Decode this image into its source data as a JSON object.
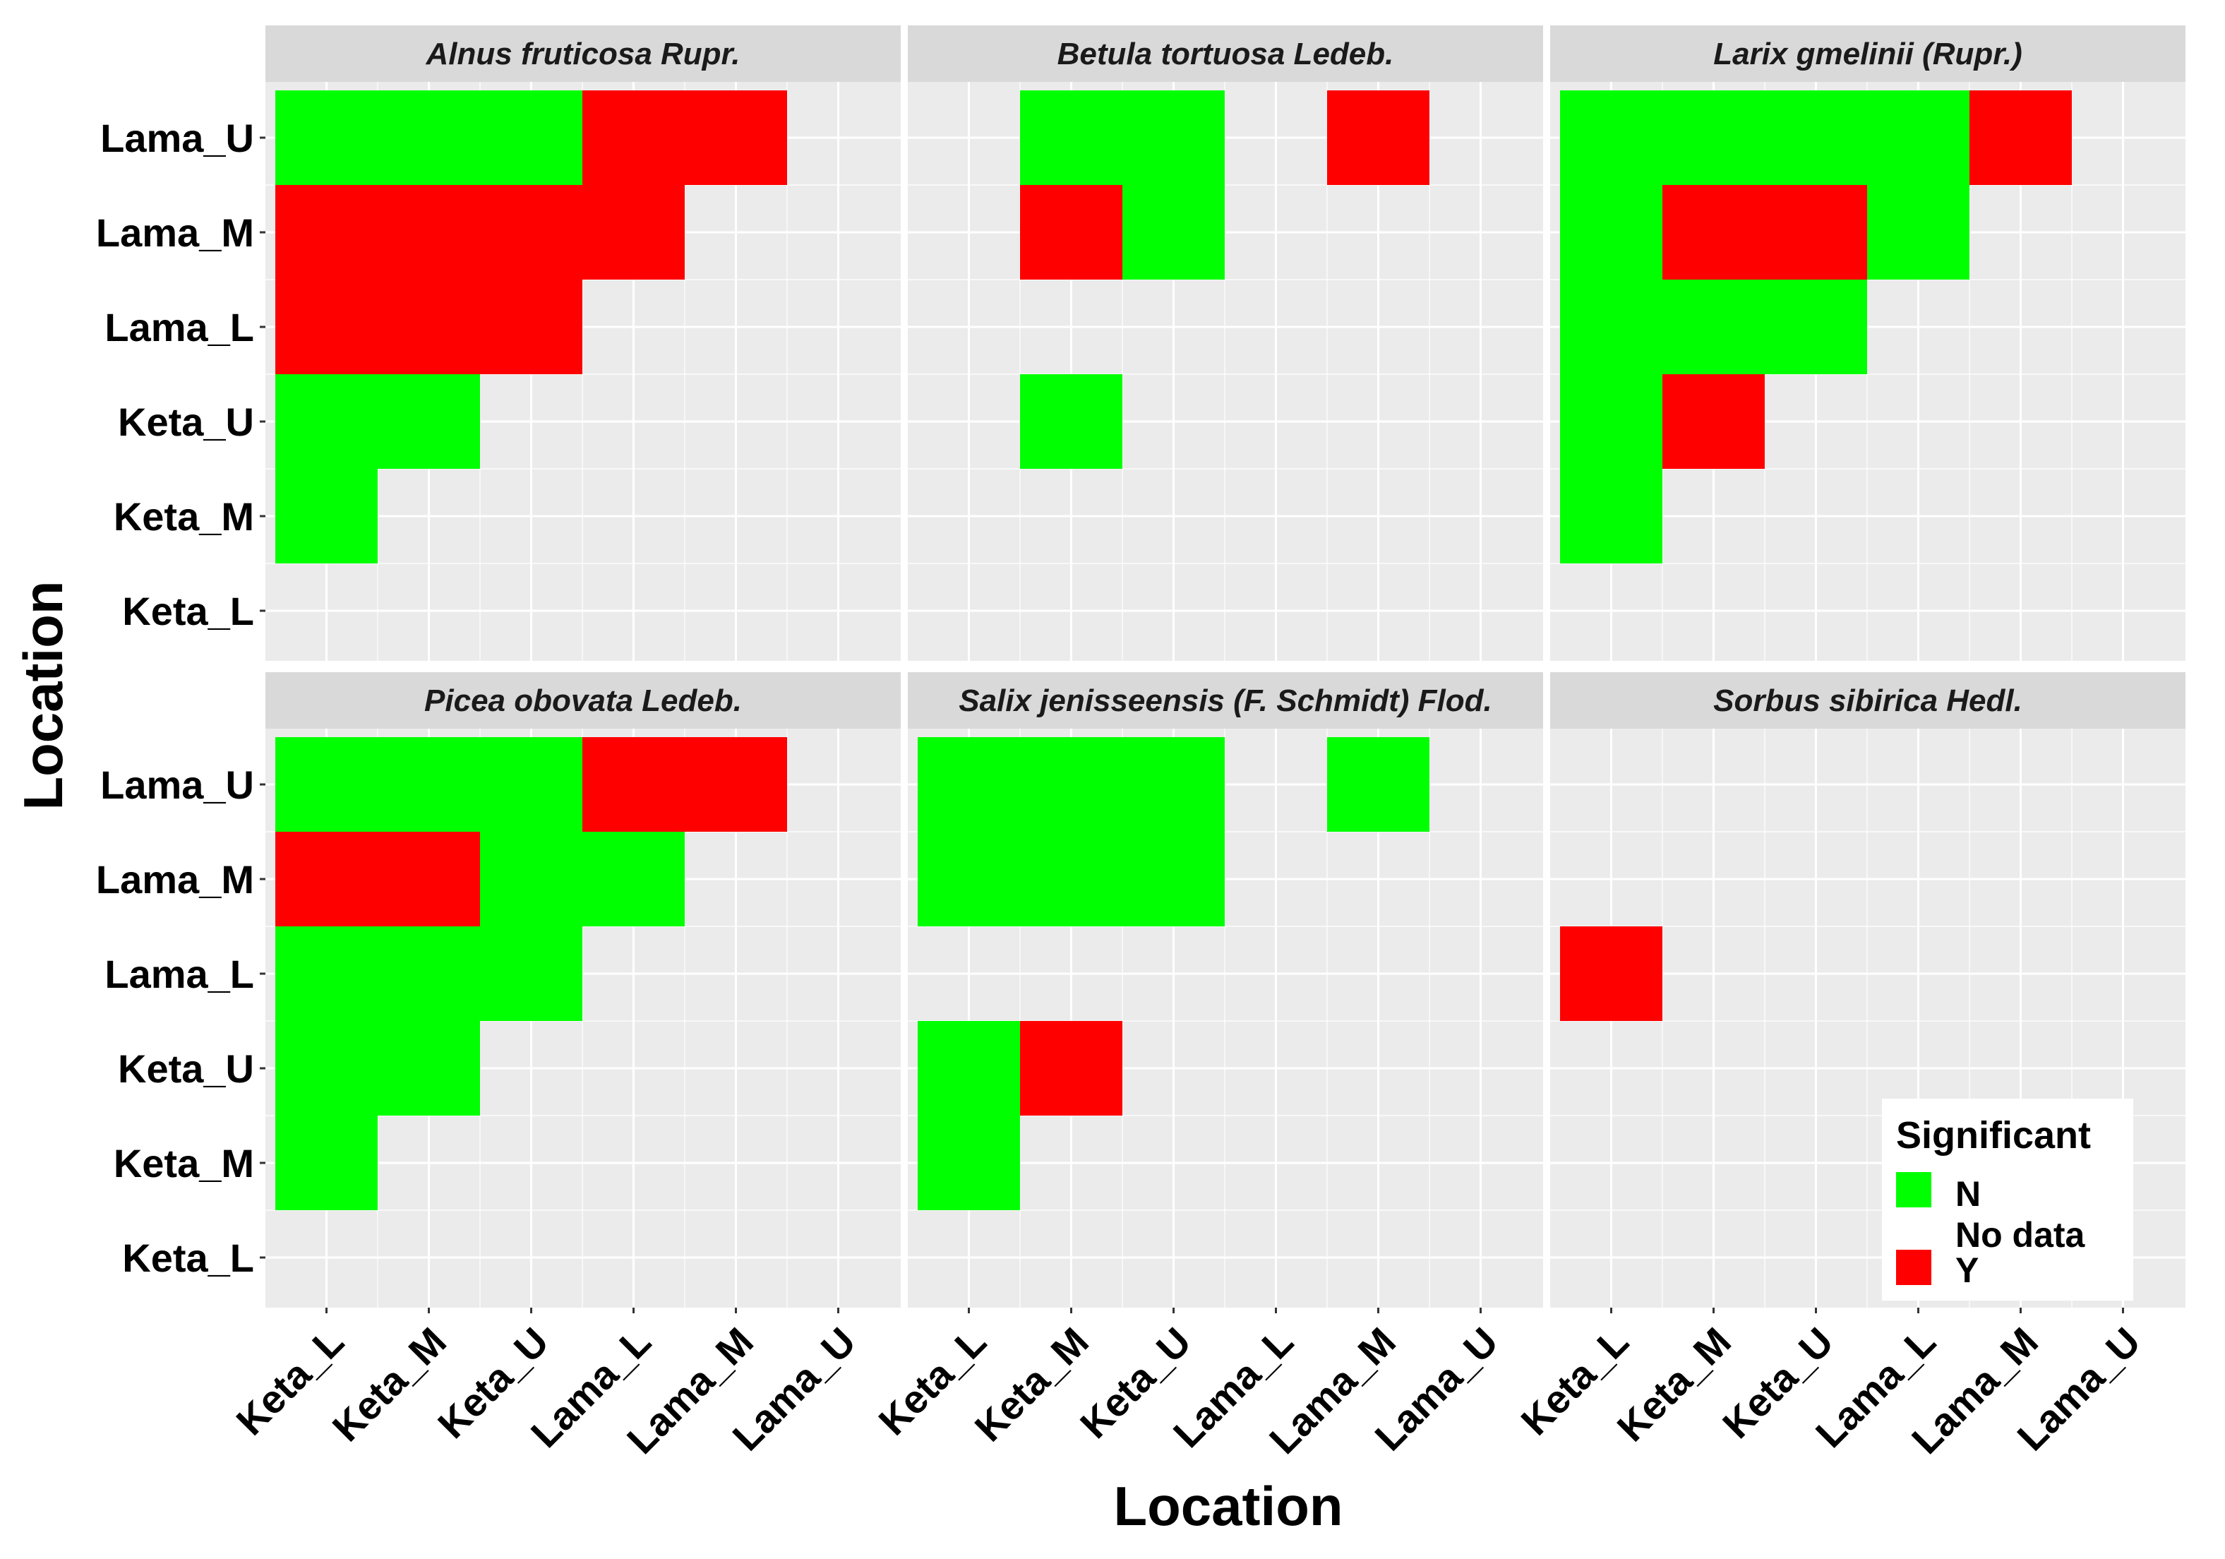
{
  "chart_data": {
    "type": "heatmap",
    "xlabel": "Location",
    "ylabel": "Location",
    "x_categories": [
      "Keta_L",
      "Keta_M",
      "Keta_U",
      "Lama_L",
      "Lama_M",
      "Lama_U"
    ],
    "y_categories": [
      "Keta_L",
      "Keta_M",
      "Keta_U",
      "Lama_L",
      "Lama_M",
      "Lama_U"
    ],
    "colors": {
      "N": "#00ff00",
      "Y": "#ff0000",
      "No data": "#ebebeb"
    },
    "legend": {
      "title": "Significant",
      "position": "bottom-right",
      "entries": [
        {
          "key": "N",
          "label": "N",
          "color": "#00ff00"
        },
        {
          "key": "No data",
          "label": "No data",
          "color": ""
        },
        {
          "key": "Y",
          "label": "Y",
          "color": "#ff0000"
        }
      ]
    },
    "facets": [
      {
        "title": "Alnus fruticosa Rupr.",
        "cells": [
          {
            "x": "Keta_L",
            "y": "Lama_U",
            "value": "N"
          },
          {
            "x": "Keta_M",
            "y": "Lama_U",
            "value": "N"
          },
          {
            "x": "Keta_U",
            "y": "Lama_U",
            "value": "N"
          },
          {
            "x": "Lama_L",
            "y": "Lama_U",
            "value": "Y"
          },
          {
            "x": "Lama_M",
            "y": "Lama_U",
            "value": "Y"
          },
          {
            "x": "Keta_L",
            "y": "Lama_M",
            "value": "Y"
          },
          {
            "x": "Keta_M",
            "y": "Lama_M",
            "value": "Y"
          },
          {
            "x": "Keta_U",
            "y": "Lama_M",
            "value": "Y"
          },
          {
            "x": "Lama_L",
            "y": "Lama_M",
            "value": "Y"
          },
          {
            "x": "Keta_L",
            "y": "Lama_L",
            "value": "Y"
          },
          {
            "x": "Keta_M",
            "y": "Lama_L",
            "value": "Y"
          },
          {
            "x": "Keta_U",
            "y": "Lama_L",
            "value": "Y"
          },
          {
            "x": "Keta_L",
            "y": "Keta_U",
            "value": "N"
          },
          {
            "x": "Keta_M",
            "y": "Keta_U",
            "value": "N"
          },
          {
            "x": "Keta_L",
            "y": "Keta_M",
            "value": "N"
          }
        ]
      },
      {
        "title": "Betula tortuosa Ledeb.",
        "cells": [
          {
            "x": "Keta_M",
            "y": "Lama_U",
            "value": "N"
          },
          {
            "x": "Keta_U",
            "y": "Lama_U",
            "value": "N"
          },
          {
            "x": "Lama_M",
            "y": "Lama_U",
            "value": "Y"
          },
          {
            "x": "Keta_M",
            "y": "Lama_M",
            "value": "Y"
          },
          {
            "x": "Keta_U",
            "y": "Lama_M",
            "value": "N"
          },
          {
            "x": "Keta_M",
            "y": "Keta_U",
            "value": "N"
          }
        ]
      },
      {
        "title": "Larix gmelinii (Rupr.)",
        "cells": [
          {
            "x": "Keta_L",
            "y": "Lama_U",
            "value": "N"
          },
          {
            "x": "Keta_M",
            "y": "Lama_U",
            "value": "N"
          },
          {
            "x": "Keta_U",
            "y": "Lama_U",
            "value": "N"
          },
          {
            "x": "Lama_L",
            "y": "Lama_U",
            "value": "N"
          },
          {
            "x": "Lama_M",
            "y": "Lama_U",
            "value": "Y"
          },
          {
            "x": "Keta_L",
            "y": "Lama_M",
            "value": "N"
          },
          {
            "x": "Keta_M",
            "y": "Lama_M",
            "value": "Y"
          },
          {
            "x": "Keta_U",
            "y": "Lama_M",
            "value": "Y"
          },
          {
            "x": "Lama_L",
            "y": "Lama_M",
            "value": "N"
          },
          {
            "x": "Keta_L",
            "y": "Lama_L",
            "value": "N"
          },
          {
            "x": "Keta_M",
            "y": "Lama_L",
            "value": "N"
          },
          {
            "x": "Keta_U",
            "y": "Lama_L",
            "value": "N"
          },
          {
            "x": "Keta_L",
            "y": "Keta_U",
            "value": "N"
          },
          {
            "x": "Keta_M",
            "y": "Keta_U",
            "value": "Y"
          },
          {
            "x": "Keta_L",
            "y": "Keta_M",
            "value": "N"
          }
        ]
      },
      {
        "title": "Picea obovata Ledeb.",
        "cells": [
          {
            "x": "Keta_L",
            "y": "Lama_U",
            "value": "N"
          },
          {
            "x": "Keta_M",
            "y": "Lama_U",
            "value": "N"
          },
          {
            "x": "Keta_U",
            "y": "Lama_U",
            "value": "N"
          },
          {
            "x": "Lama_L",
            "y": "Lama_U",
            "value": "Y"
          },
          {
            "x": "Lama_M",
            "y": "Lama_U",
            "value": "Y"
          },
          {
            "x": "Keta_L",
            "y": "Lama_M",
            "value": "Y"
          },
          {
            "x": "Keta_M",
            "y": "Lama_M",
            "value": "Y"
          },
          {
            "x": "Keta_U",
            "y": "Lama_M",
            "value": "N"
          },
          {
            "x": "Lama_L",
            "y": "Lama_M",
            "value": "N"
          },
          {
            "x": "Keta_L",
            "y": "Lama_L",
            "value": "N"
          },
          {
            "x": "Keta_M",
            "y": "Lama_L",
            "value": "N"
          },
          {
            "x": "Keta_U",
            "y": "Lama_L",
            "value": "N"
          },
          {
            "x": "Keta_L",
            "y": "Keta_U",
            "value": "N"
          },
          {
            "x": "Keta_M",
            "y": "Keta_U",
            "value": "N"
          },
          {
            "x": "Keta_L",
            "y": "Keta_M",
            "value": "N"
          }
        ]
      },
      {
        "title": "Salix jenisseensis (F. Schmidt) Flod.",
        "cells": [
          {
            "x": "Keta_L",
            "y": "Lama_U",
            "value": "N"
          },
          {
            "x": "Keta_M",
            "y": "Lama_U",
            "value": "N"
          },
          {
            "x": "Keta_U",
            "y": "Lama_U",
            "value": "N"
          },
          {
            "x": "Lama_M",
            "y": "Lama_U",
            "value": "N"
          },
          {
            "x": "Keta_L",
            "y": "Lama_M",
            "value": "N"
          },
          {
            "x": "Keta_M",
            "y": "Lama_M",
            "value": "N"
          },
          {
            "x": "Keta_U",
            "y": "Lama_M",
            "value": "N"
          },
          {
            "x": "Keta_L",
            "y": "Keta_U",
            "value": "N"
          },
          {
            "x": "Keta_M",
            "y": "Keta_U",
            "value": "Y"
          },
          {
            "x": "Keta_L",
            "y": "Keta_M",
            "value": "N"
          }
        ]
      },
      {
        "title": "Sorbus sibirica Hedl.",
        "cells": [
          {
            "x": "Keta_L",
            "y": "Lama_L",
            "value": "Y"
          }
        ]
      }
    ]
  }
}
